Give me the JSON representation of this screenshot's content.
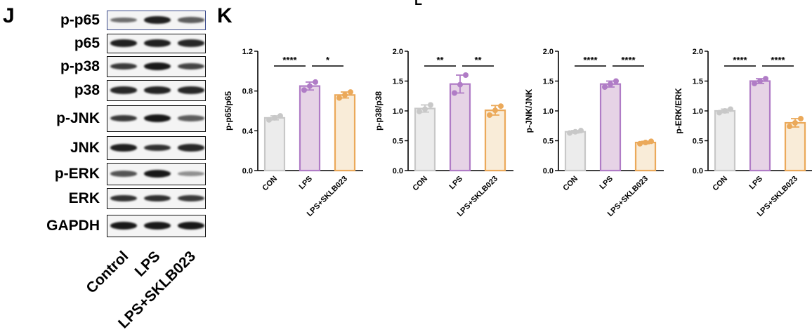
{
  "panels": {
    "j": "J",
    "k": "K",
    "top_partial": "L"
  },
  "blot": {
    "rows": [
      {
        "label": "p-p65",
        "intensity": [
          0.45,
          0.9,
          0.55
        ]
      },
      {
        "label": "p65",
        "intensity": [
          0.9,
          0.9,
          0.85
        ]
      },
      {
        "label": "p-p38",
        "intensity": [
          0.75,
          0.95,
          0.7
        ]
      },
      {
        "label": "p38",
        "intensity": [
          0.85,
          0.88,
          0.85
        ]
      },
      {
        "label": "p-JNK",
        "intensity": [
          0.75,
          0.95,
          0.55
        ]
      },
      {
        "label": "JNK",
        "intensity": [
          0.9,
          0.8,
          0.85
        ]
      },
      {
        "label": "p-ERK",
        "intensity": [
          0.6,
          0.95,
          0.25
        ]
      },
      {
        "label": "ERK",
        "intensity": [
          0.8,
          0.82,
          0.75
        ]
      },
      {
        "label": "GAPDH",
        "intensity": [
          0.95,
          0.95,
          0.95
        ]
      }
    ],
    "lanes": [
      "Control",
      "LPS",
      "LPS+SKLB023"
    ]
  },
  "colors": {
    "con_edge": "#c8c8c8",
    "con_fill": "#ececec",
    "lps_edge": "#b07cc6",
    "lps_fill": "#e6d3e6",
    "sklb_edge": "#eba95a",
    "sklb_fill": "#f9ecd8"
  },
  "chart_data": [
    {
      "type": "bar",
      "ylabel": "p-p65/p65",
      "categories": [
        "CON",
        "LPS",
        "LPS+SKLB023"
      ],
      "values": [
        0.53,
        0.85,
        0.76
      ],
      "errors": [
        0.02,
        0.04,
        0.03
      ],
      "points": [
        [
          0.51,
          0.53,
          0.55
        ],
        [
          0.81,
          0.85,
          0.89
        ],
        [
          0.73,
          0.76,
          0.79
        ]
      ],
      "ylim": [
        0,
        1.2
      ],
      "yticks": [
        "0.0",
        "0.4",
        "0.8",
        "1.2"
      ],
      "significance": [
        {
          "from": 0,
          "to": 1,
          "label": "****"
        },
        {
          "from": 1,
          "to": 2,
          "label": "*"
        }
      ]
    },
    {
      "type": "bar",
      "ylabel": "p-p38/p38",
      "categories": [
        "CON",
        "LPS",
        "LPS+SKLB023"
      ],
      "values": [
        1.04,
        1.45,
        1.01
      ],
      "errors": [
        0.06,
        0.15,
        0.08
      ],
      "points": [
        [
          0.99,
          1.03,
          1.1
        ],
        [
          1.3,
          1.44,
          1.6
        ],
        [
          0.93,
          1.01,
          1.08
        ]
      ],
      "ylim": [
        0,
        2.0
      ],
      "yticks": [
        "0.0",
        "0.5",
        "1.0",
        "1.5",
        "2.0"
      ],
      "significance": [
        {
          "from": 0,
          "to": 1,
          "label": "**"
        },
        {
          "from": 1,
          "to": 2,
          "label": "**"
        }
      ]
    },
    {
      "type": "bar",
      "ylabel": "p-JNK/JNK",
      "categories": [
        "CON",
        "LPS",
        "LPS+SKLB023"
      ],
      "values": [
        0.65,
        1.45,
        0.47
      ],
      "errors": [
        0.02,
        0.05,
        0.02
      ],
      "points": [
        [
          0.63,
          0.65,
          0.67
        ],
        [
          1.4,
          1.45,
          1.5
        ],
        [
          0.45,
          0.47,
          0.49
        ]
      ],
      "ylim": [
        0,
        2.0
      ],
      "yticks": [
        "0.0",
        "0.5",
        "1.0",
        "1.5",
        "2.0"
      ],
      "significance": [
        {
          "from": 0,
          "to": 1,
          "label": "****"
        },
        {
          "from": 1,
          "to": 2,
          "label": "****"
        }
      ]
    },
    {
      "type": "bar",
      "ylabel": "p-ERK/ERK",
      "categories": [
        "CON",
        "LPS",
        "LPS+SKLB023"
      ],
      "values": [
        1.0,
        1.5,
        0.8
      ],
      "errors": [
        0.03,
        0.04,
        0.07
      ],
      "points": [
        [
          0.97,
          1.0,
          1.03
        ],
        [
          1.46,
          1.5,
          1.54
        ],
        [
          0.74,
          0.8,
          0.87
        ]
      ],
      "ylim": [
        0,
        2.0
      ],
      "yticks": [
        "0.0",
        "0.5",
        "1.0",
        "1.5",
        "2.0"
      ],
      "significance": [
        {
          "from": 0,
          "to": 1,
          "label": "****"
        },
        {
          "from": 1,
          "to": 2,
          "label": "****"
        }
      ]
    }
  ]
}
